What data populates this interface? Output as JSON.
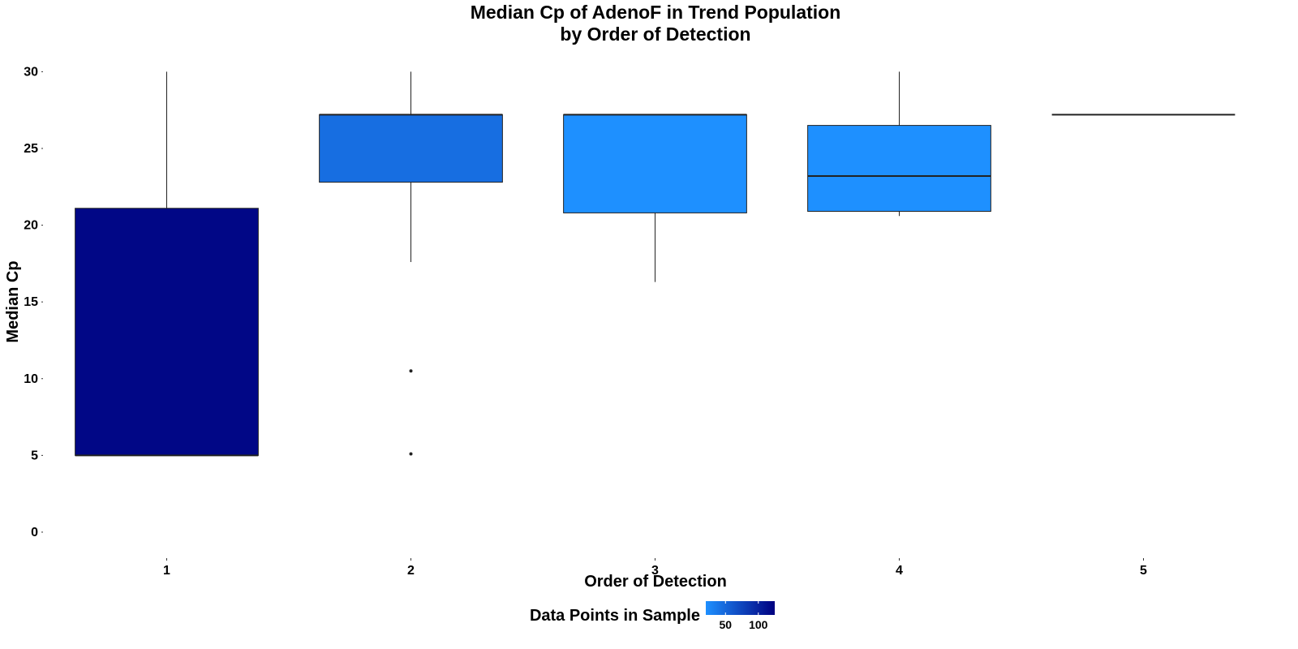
{
  "chart_data": {
    "type": "boxplot",
    "title_line1": "Median Cp of AdenoF in Trend Population",
    "title_line2": "by Order of Detection",
    "xlabel": "Order of Detection",
    "ylabel": "Median Cp",
    "categories": [
      "1",
      "2",
      "3",
      "4",
      "5"
    ],
    "ylim": [
      -1.8,
      31.5
    ],
    "yticks": [
      0,
      5,
      10,
      15,
      20,
      25,
      30
    ],
    "grid": false,
    "boxes": [
      {
        "category": "1",
        "lower": 5.0,
        "q1": 5.0,
        "median": 5.0,
        "q3": 21.1,
        "upper": 30.0,
        "outliers": [],
        "n": 120
      },
      {
        "category": "2",
        "lower": 17.6,
        "q1": 22.8,
        "median": 27.2,
        "q3": 27.2,
        "upper": 30.0,
        "outliers": [
          10.5,
          5.1
        ],
        "n": 45
      },
      {
        "category": "3",
        "lower": 16.3,
        "q1": 20.8,
        "median": 27.2,
        "q3": 27.2,
        "upper": 27.2,
        "outliers": [],
        "n": 20
      },
      {
        "category": "4",
        "lower": 20.6,
        "q1": 20.9,
        "median": 23.2,
        "q3": 26.5,
        "upper": 30.0,
        "outliers": [],
        "n": 20
      },
      {
        "category": "5",
        "lower": 27.2,
        "q1": 27.2,
        "median": 27.2,
        "q3": 27.2,
        "upper": 27.2,
        "outliers": [],
        "n": 1
      }
    ],
    "legend": {
      "title": "Data Points in Sample",
      "position": "bottom",
      "breaks": [
        50,
        100
      ],
      "range": [
        20,
        125
      ],
      "color_low": "#1E90FF",
      "color_high": "#000080"
    }
  }
}
